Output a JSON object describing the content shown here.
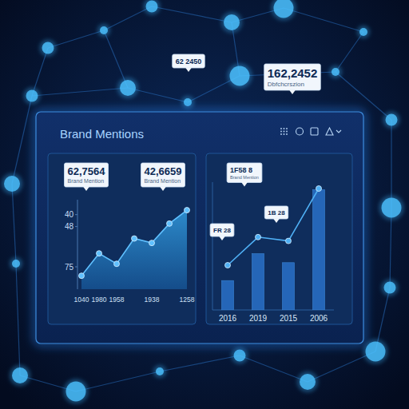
{
  "header": {
    "title": "Brand Mentions"
  },
  "floating_labels": [
    {
      "text": "62 2450"
    },
    {
      "text": "162,2452",
      "subtext": "Dbfchcrszion"
    }
  ],
  "chart_data": [
    {
      "type": "area",
      "categories": [
        "1040",
        "1980",
        "1958",
        null,
        "1938",
        null,
        "1258"
      ],
      "values": [
        81,
        66,
        73,
        56,
        59,
        46,
        37
      ],
      "color": "#5fc0ff",
      "marker": "circle",
      "ylim": [
        90,
        30
      ],
      "yticks": [
        40,
        48,
        75
      ],
      "annotations": [
        {
          "text": "62,7564",
          "subtext": "Brand Mention"
        },
        {
          "text": "42,6659",
          "subtext": "Brand Mention"
        }
      ]
    },
    {
      "type": "bar",
      "categories": [
        "2016",
        "2019",
        "2015",
        "2006"
      ],
      "series": [
        {
          "type": "bar",
          "color": "#2566b8",
          "values": [
            23,
            44,
            37,
            94
          ]
        },
        {
          "type": "line",
          "color": "#4fb0f5",
          "marker": "circle",
          "values": [
            35,
            57,
            54,
            95
          ]
        }
      ],
      "ylim": [
        0,
        100
      ],
      "tick_labels": "x",
      "annotations": [
        {
          "text": "1F58 8",
          "subtext": "Brand Mention"
        },
        {
          "text": "FR 28"
        },
        {
          "text": "1B 28"
        }
      ]
    }
  ]
}
